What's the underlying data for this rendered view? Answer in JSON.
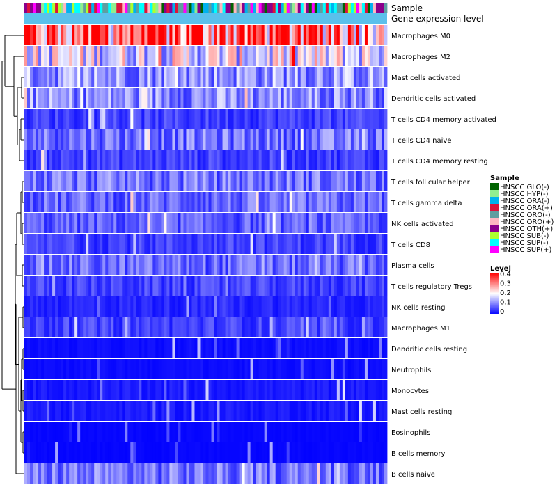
{
  "chart_data": {
    "type": "heatmap",
    "title": "",
    "column_count": 130,
    "annotation_labels": [
      "Sample",
      "Gene expression level"
    ],
    "rows": [
      {
        "name": "Macrophages M0",
        "mean": 0.33
      },
      {
        "name": "Macrophages M2",
        "mean": 0.18
      },
      {
        "name": "Mast cells activated",
        "mean": 0.12
      },
      {
        "name": "Dendritic cells activated",
        "mean": 0.11
      },
      {
        "name": "T cells CD4 memory activated",
        "mean": 0.05
      },
      {
        "name": "T cells CD4 naive",
        "mean": 0.09
      },
      {
        "name": "T cells CD4 memory resting",
        "mean": 0.05
      },
      {
        "name": "T cells follicular helper",
        "mean": 0.09
      },
      {
        "name": "T cells gamma delta",
        "mean": 0.08
      },
      {
        "name": "NK cells activated",
        "mean": 0.07
      },
      {
        "name": "T cells CD8",
        "mean": 0.05
      },
      {
        "name": "Plasma cells",
        "mean": 0.08
      },
      {
        "name": "T cells regulatory  Tregs",
        "mean": 0.05
      },
      {
        "name": "NK cells resting",
        "mean": 0.03
      },
      {
        "name": "Macrophages M1",
        "mean": 0.05
      },
      {
        "name": "Dendritic cells resting",
        "mean": 0.01
      },
      {
        "name": "Neutrophils",
        "mean": 0.01
      },
      {
        "name": "Monocytes",
        "mean": 0.02
      },
      {
        "name": "Mast cells resting",
        "mean": 0.02
      },
      {
        "name": "Eosinophils",
        "mean": 0.005
      },
      {
        "name": "B cells memory",
        "mean": 0.005
      },
      {
        "name": "B cells naive",
        "mean": 0.09
      }
    ],
    "legend_sample": {
      "title": "Sample",
      "entries": [
        {
          "label": "HNSCC GLO(-)",
          "color": "#006400"
        },
        {
          "label": "HNSCC HYP(-)",
          "color": "#90EE90"
        },
        {
          "label": "HNSCC ORA(-)",
          "color": "#00B2EE"
        },
        {
          "label": "HNSCC ORA(+)",
          "color": "#DC143C"
        },
        {
          "label": "HNSCC ORO(-)",
          "color": "#5F9EA0"
        },
        {
          "label": "HNSCC ORO(+)",
          "color": "#FFB6C1"
        },
        {
          "label": "HNSCC OTH(+)",
          "color": "#8B008B"
        },
        {
          "label": "HNSCC SUB(-)",
          "color": "#ADFF2F"
        },
        {
          "label": "HNSCC SUP(-)",
          "color": "#00FFFF"
        },
        {
          "label": "HNSCC SUP(+)",
          "color": "#FF00FF"
        }
      ]
    },
    "legend_level": {
      "title": "Level",
      "ticks": [
        "0.4",
        "0.3",
        "0.2",
        "0.1",
        "0"
      ],
      "range": [
        0,
        0.4
      ],
      "colors": [
        "#0000FF",
        "#FFFFFF",
        "#FF0000"
      ]
    },
    "gene_expression_color": "#5BC0EB"
  }
}
